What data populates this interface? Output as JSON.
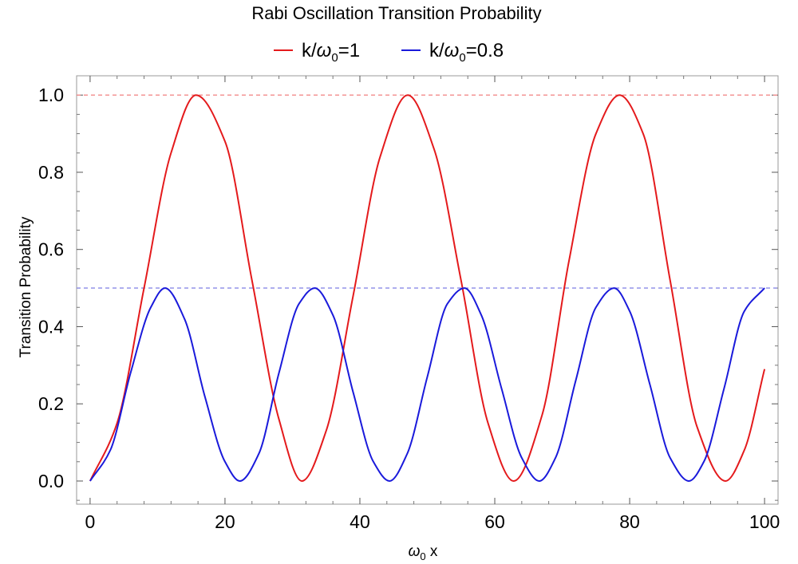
{
  "chart_data": {
    "type": "line",
    "title": "Rabi Oscillation Transition Probability",
    "xlabel": {
      "symbol": "ω",
      "subscript": "0",
      "suffix": " x"
    },
    "ylabel": "Transition Probability",
    "xlim": [
      -2,
      102
    ],
    "ylim": [
      -0.06,
      1.05
    ],
    "xticks": [
      0,
      20,
      40,
      60,
      80,
      100
    ],
    "xtick_labels": [
      "0",
      "20",
      "40",
      "60",
      "80",
      "100"
    ],
    "yticks": [
      0.0,
      0.2,
      0.4,
      0.6,
      0.8,
      1.0
    ],
    "ytick_labels": [
      "0.0",
      "0.2",
      "0.4",
      "0.6",
      "0.8",
      "1.0"
    ],
    "legend_position": "top-center",
    "series": [
      {
        "name": {
          "prefix": "k/",
          "symbol": "ω",
          "subscript": "0",
          "suffix": "=1"
        },
        "color": "#e41a1c",
        "values": {
          "x": [
            0,
            4,
            8,
            12,
            15.7,
            20,
            24,
            28,
            31.4,
            35,
            39,
            43,
            47.1,
            51,
            55,
            59,
            62.8,
            67,
            71,
            75,
            78.5,
            82,
            86,
            90,
            94.2,
            97,
            100
          ],
          "y": [
            0,
            0.15,
            0.5,
            0.85,
            1.0,
            0.88,
            0.52,
            0.16,
            0,
            0.13,
            0.48,
            0.84,
            1.0,
            0.86,
            0.52,
            0.15,
            0,
            0.17,
            0.57,
            0.9,
            1.0,
            0.9,
            0.52,
            0.14,
            0,
            0.08,
            0.29
          ]
        }
      },
      {
        "name": {
          "prefix": "k/",
          "symbol": "ω",
          "subscript": "0",
          "suffix": "=0.8"
        },
        "color": "#1a1adb",
        "values": {
          "x": [
            0,
            3,
            6,
            9,
            11.1,
            14,
            17,
            20,
            22.2,
            25,
            28,
            31,
            33.3,
            36,
            39,
            42,
            44.4,
            47,
            50,
            53,
            55.5,
            58,
            61,
            64,
            66.6,
            69,
            72,
            75,
            77.7,
            80,
            83,
            86,
            88.8,
            91,
            94,
            97,
            100
          ],
          "y": [
            0,
            0.08,
            0.28,
            0.45,
            0.5,
            0.42,
            0.22,
            0.05,
            0,
            0.07,
            0.28,
            0.46,
            0.5,
            0.43,
            0.23,
            0.05,
            0,
            0.07,
            0.27,
            0.46,
            0.5,
            0.43,
            0.24,
            0.06,
            0,
            0.06,
            0.26,
            0.45,
            0.5,
            0.44,
            0.25,
            0.06,
            0,
            0.05,
            0.24,
            0.44,
            0.5
          ]
        }
      }
    ],
    "reference_lines": [
      {
        "y": 1.0,
        "color": "#f28b8b",
        "style": "dashed"
      },
      {
        "y": 0.5,
        "color": "#8a8ae6",
        "style": "dashed"
      }
    ]
  }
}
